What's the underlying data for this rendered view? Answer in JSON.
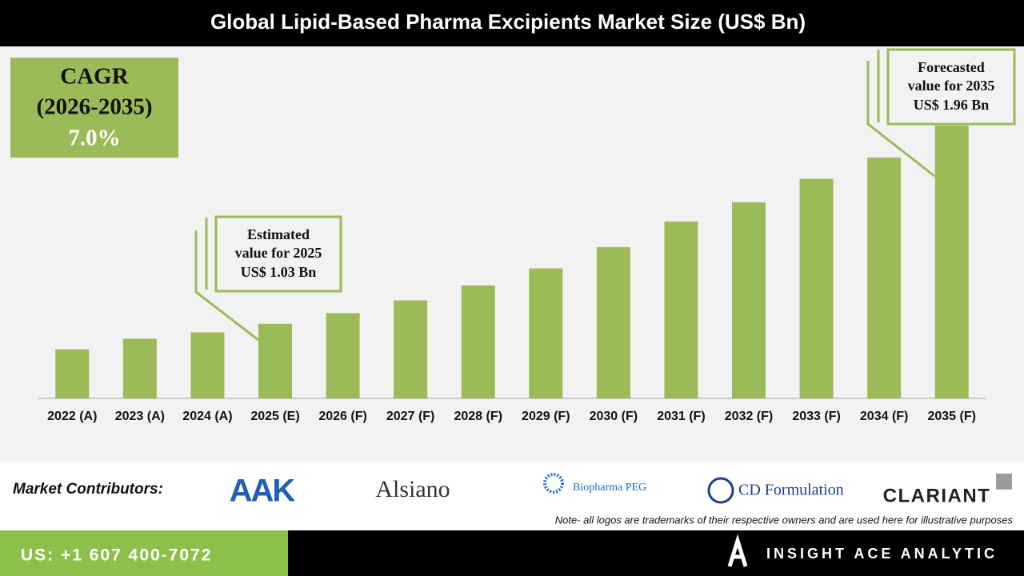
{
  "chart_data": {
    "type": "bar",
    "title": "Global Lipid-Based Pharma Excipients Market Size (US$ Bn)",
    "categories": [
      "2022 (A)",
      "2023 (A)",
      "2024 (A)",
      "2025 (E)",
      "2026 (F)",
      "2027 (F)",
      "2028 (F)",
      "2029 (F)",
      "2030 (F)",
      "2031 (F)",
      "2032 (F)",
      "2033 (F)",
      "2034 (F)",
      "2035 (F)"
    ],
    "values": [
      0.91,
      0.96,
      0.99,
      1.03,
      1.08,
      1.14,
      1.21,
      1.29,
      1.39,
      1.51,
      1.6,
      1.71,
      1.81,
      1.96
    ],
    "color": "#9bbb59",
    "ylim": [
      0.68,
      2.05
    ],
    "cagr": {
      "label": "CAGR",
      "period": "(2026-2035)",
      "value": "7.0%"
    },
    "annotations": [
      {
        "lines": [
          "Estimated",
          "value for 2025",
          "US$ 1.03 Bn"
        ]
      },
      {
        "lines": [
          "Forecasted",
          "value for 2035",
          "US$ 1.96 Bn"
        ]
      }
    ]
  },
  "contributors": {
    "label": "Market Contributors:",
    "logos": [
      "AAK",
      "Alsiano",
      "Biopharma PEG",
      "CD Formulation",
      "CLARIANT"
    ],
    "note": "Note- all logos are trademarks of their respective owners and are used here for illustrative purposes"
  },
  "footer": {
    "phone": "US: +1 607 400-7072",
    "brand": "INSIGHT ACE ANALYTIC"
  }
}
